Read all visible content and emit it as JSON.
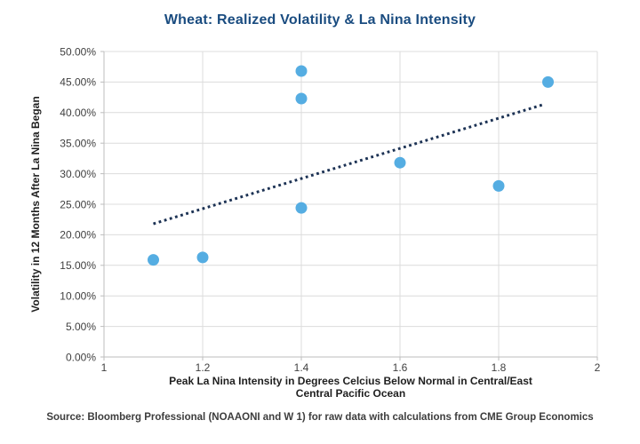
{
  "source": "Source: Bloomberg Professional (NOAAONI and W 1) for raw data with calculations from CME Group Economics",
  "chart_data": {
    "type": "scatter",
    "title": "Wheat: Realized Volatility & La Nina Intensity",
    "xlabel_line1": "Peak La Nina Intensity in Degrees Celcius Below Normal in Central/East",
    "xlabel_line2": "Central Pacific Ocean",
    "ylabel": "Volatility in 12 Months After La Nina Began",
    "xlim": [
      1,
      2
    ],
    "ylim_pct": [
      0,
      50
    ],
    "grid": true,
    "legend": "none",
    "x_ticks": [
      1,
      1.2,
      1.4,
      1.6,
      1.8,
      2
    ],
    "x_tick_labels": [
      "1",
      "1.2",
      "1.4",
      "1.6",
      "1.8",
      "2"
    ],
    "y_tick_values_pct": [
      0,
      5,
      10,
      15,
      20,
      25,
      30,
      35,
      40,
      45,
      50
    ],
    "y_tick_labels": [
      "0.00%",
      "5.00%",
      "10.00%",
      "15.00%",
      "20.00%",
      "25.00%",
      "30.00%",
      "35.00%",
      "40.00%",
      "45.00%",
      "50.00%"
    ],
    "points": [
      {
        "x": 1.1,
        "y_pct": 15.9
      },
      {
        "x": 1.2,
        "y_pct": 16.3
      },
      {
        "x": 1.4,
        "y_pct": 46.8
      },
      {
        "x": 1.4,
        "y_pct": 42.3
      },
      {
        "x": 1.4,
        "y_pct": 24.4
      },
      {
        "x": 1.6,
        "y_pct": 31.8
      },
      {
        "x": 1.8,
        "y_pct": 28.0
      },
      {
        "x": 1.9,
        "y_pct": 45.0
      }
    ],
    "trendline": {
      "style": "dotted",
      "x1": 1.1,
      "y1_pct": 21.8,
      "x2": 1.89,
      "y2_pct": 41.3
    },
    "colors": {
      "marker": "#55ADE2",
      "trendline": "#1C3254",
      "gridline": "#DCDCDC",
      "axis": "#BDBDBD",
      "title_text": "#1A4C80",
      "tick_text": "#3F3F3F",
      "axis_title_text": "#1F1F1F",
      "source_text": "#3D3D3D"
    }
  }
}
